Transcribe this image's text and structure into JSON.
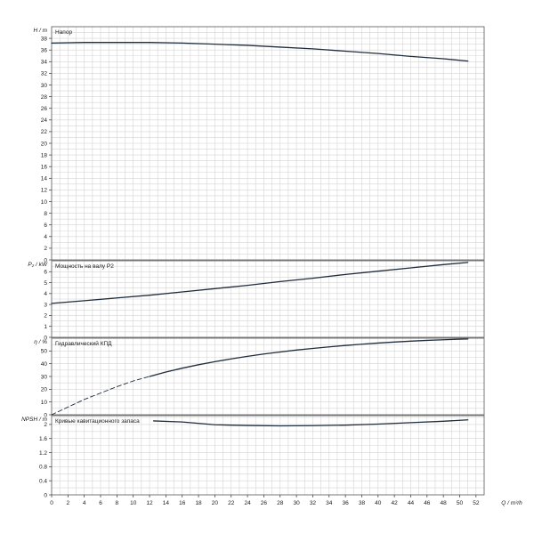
{
  "chart_data": [
    {
      "type": "line",
      "title": "Напор",
      "ylabel": "H / m",
      "xlabel": "",
      "ylim": [
        0,
        40
      ],
      "yticks": [
        "0",
        "2",
        "4",
        "6",
        "8",
        "10",
        "12",
        "14",
        "16",
        "18",
        "20",
        "22",
        "24",
        "26",
        "28",
        "30",
        "32",
        "34",
        "36",
        "38"
      ],
      "grid": true,
      "series": [
        {
          "style": "solid",
          "color": "#1f2d3d",
          "x": [
            0,
            4,
            8,
            12,
            16,
            20,
            24,
            28,
            32,
            36,
            40,
            44,
            48,
            51
          ],
          "y": [
            37.2,
            37.3,
            37.3,
            37.3,
            37.2,
            37.0,
            36.8,
            36.5,
            36.2,
            35.8,
            35.4,
            34.9,
            34.5,
            34.1
          ]
        }
      ]
    },
    {
      "type": "line",
      "title": "Мощность на валу P2",
      "ylabel": "P₂ / kW",
      "xlabel": "",
      "ylim": [
        0,
        7
      ],
      "yticks": [
        "0",
        "1",
        "2",
        "3",
        "4",
        "5",
        "6"
      ],
      "grid": true,
      "series": [
        {
          "style": "solid",
          "color": "#1f2d3d",
          "x": [
            0,
            4,
            8,
            12,
            16,
            20,
            24,
            28,
            32,
            36,
            40,
            44,
            48,
            51
          ],
          "y": [
            3.1,
            3.35,
            3.6,
            3.85,
            4.15,
            4.45,
            4.75,
            5.1,
            5.4,
            5.75,
            6.05,
            6.35,
            6.65,
            6.85
          ]
        }
      ]
    },
    {
      "type": "line",
      "title": "Гидравлический КПД",
      "ylabel": "η / %",
      "xlabel": "",
      "ylim": [
        0,
        60
      ],
      "yticks": [
        "0",
        "10",
        "20",
        "30",
        "40",
        "50"
      ],
      "grid": true,
      "series": [
        {
          "style": "dashed",
          "color": "#1f2d3d",
          "x": [
            0,
            2,
            4,
            6,
            8,
            10,
            12
          ],
          "y": [
            0,
            6,
            12,
            17,
            22,
            26.5,
            30
          ]
        },
        {
          "style": "solid",
          "color": "#1f2d3d",
          "x": [
            12,
            14,
            16,
            18,
            20,
            22,
            24,
            26,
            28,
            30,
            32,
            34,
            36,
            38,
            40,
            42,
            44,
            46,
            48,
            51
          ],
          "y": [
            30,
            33.5,
            36.5,
            39.2,
            41.6,
            43.8,
            45.8,
            47.6,
            49.2,
            50.7,
            52,
            53.2,
            54.3,
            55.3,
            56.2,
            57,
            57.7,
            58.3,
            58.8,
            59.4
          ]
        }
      ]
    },
    {
      "type": "line",
      "title": "Кривые кавитационного запаса",
      "ylabel": "NPSH / m",
      "xlabel": "Q / m³/h",
      "ylim": [
        0,
        2.25
      ],
      "yticks": [
        "0",
        "0.4",
        "0.8",
        "1.2",
        "1.6",
        "2"
      ],
      "xticks": [
        "0",
        "2",
        "4",
        "6",
        "8",
        "10",
        "12",
        "14",
        "16",
        "18",
        "20",
        "22",
        "24",
        "26",
        "28",
        "30",
        "32",
        "34",
        "36",
        "38",
        "40",
        "42",
        "44",
        "46",
        "48",
        "50",
        "52"
      ],
      "grid": true,
      "series": [
        {
          "style": "solid",
          "color": "#1f2d3d",
          "x": [
            12.5,
            16,
            20,
            24,
            28,
            32,
            36,
            40,
            44,
            48,
            51
          ],
          "y": [
            2.1,
            2.07,
            1.99,
            1.97,
            1.96,
            1.965,
            1.98,
            2.01,
            2.05,
            2.09,
            2.13
          ]
        }
      ]
    }
  ]
}
